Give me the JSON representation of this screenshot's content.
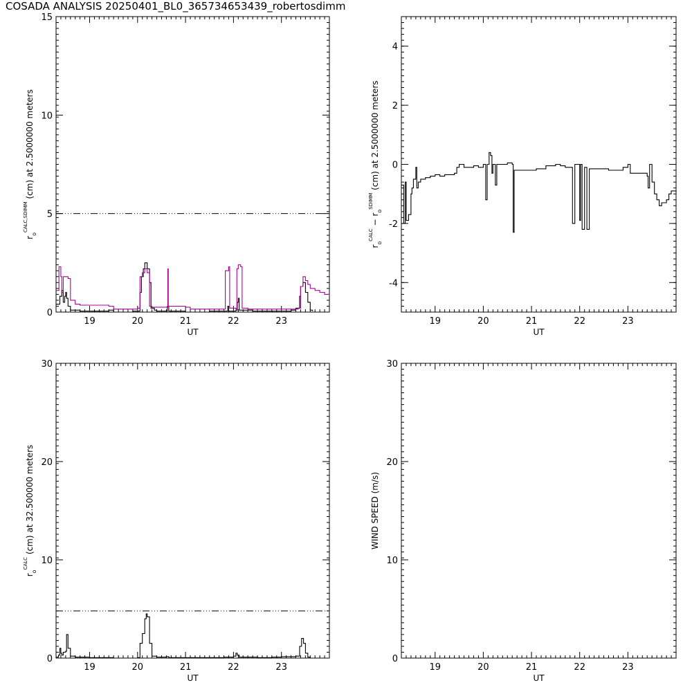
{
  "title": "COSADA ANALYSIS 20250401_BL0_365734653439_robertosdimm",
  "chart_data": [
    {
      "id": "p1",
      "type": "line",
      "xlabel": "UT",
      "xlim": [
        18.3,
        24.0
      ],
      "ylim": [
        0,
        15
      ],
      "xticks": [
        19,
        20,
        21,
        22,
        23
      ],
      "yticks": [
        0,
        5,
        10,
        15
      ],
      "ylabel_main": "r",
      "ylabel_sub": "o",
      "ylabel_sup": "CALC,SDIMM",
      "ylabel_rest": " (cm)  at  2.5000000 meters",
      "hline": 5,
      "series": [
        {
          "color": "#000000",
          "points": [
            [
              18.3,
              0.4
            ],
            [
              18.35,
              0.4
            ],
            [
              18.38,
              0.8
            ],
            [
              18.42,
              1.1
            ],
            [
              18.45,
              0.5
            ],
            [
              18.48,
              0.8
            ],
            [
              18.5,
              1.0
            ],
            [
              18.52,
              0.7
            ],
            [
              18.55,
              0.3
            ],
            [
              18.6,
              0.1
            ],
            [
              18.8,
              0.05
            ],
            [
              19.4,
              0.1
            ],
            [
              19.5,
              0.0
            ],
            [
              19.9,
              0.05
            ],
            [
              20.0,
              0.05
            ],
            [
              20.05,
              1.0
            ],
            [
              20.08,
              1.8
            ],
            [
              20.12,
              2.2
            ],
            [
              20.15,
              2.5
            ],
            [
              20.2,
              2.2
            ],
            [
              20.25,
              1.5
            ],
            [
              20.28,
              0.2
            ],
            [
              20.35,
              0.1
            ],
            [
              20.4,
              0.05
            ],
            [
              20.6,
              0.05
            ],
            [
              20.62,
              0.3
            ],
            [
              20.65,
              0.05
            ],
            [
              21.0,
              0.0
            ],
            [
              21.5,
              0.05
            ],
            [
              21.85,
              0.05
            ],
            [
              21.88,
              0.3
            ],
            [
              21.9,
              0.05
            ],
            [
              22.05,
              0.1
            ],
            [
              22.08,
              0.5
            ],
            [
              22.1,
              0.7
            ],
            [
              22.12,
              0.1
            ],
            [
              22.4,
              0.05
            ],
            [
              23.2,
              0.1
            ],
            [
              23.3,
              0.2
            ],
            [
              23.38,
              0.8
            ],
            [
              23.4,
              1.3
            ],
            [
              23.45,
              1.5
            ],
            [
              23.5,
              1.0
            ],
            [
              23.55,
              0.5
            ],
            [
              23.6,
              0.1
            ],
            [
              23.65,
              0.05
            ]
          ]
        },
        {
          "color": "#aa0099",
          "points": [
            [
              18.3,
              1.1
            ],
            [
              18.36,
              2.3
            ],
            [
              18.4,
              1.8
            ],
            [
              18.42,
              1.0
            ],
            [
              18.45,
              1.8
            ],
            [
              18.55,
              1.7
            ],
            [
              18.6,
              0.6
            ],
            [
              18.7,
              0.4
            ],
            [
              18.8,
              0.35
            ],
            [
              19.0,
              0.35
            ],
            [
              19.4,
              0.3
            ],
            [
              19.5,
              0.15
            ],
            [
              19.8,
              0.15
            ],
            [
              19.9,
              0.15
            ],
            [
              20.0,
              0.2
            ],
            [
              20.05,
              1.8
            ],
            [
              20.1,
              2.0
            ],
            [
              20.15,
              2.2
            ],
            [
              20.2,
              2.0
            ],
            [
              20.25,
              0.3
            ],
            [
              20.3,
              0.25
            ],
            [
              20.62,
              0.25
            ],
            [
              20.63,
              2.2
            ],
            [
              20.64,
              0.3
            ],
            [
              21.0,
              0.25
            ],
            [
              21.1,
              0.15
            ],
            [
              21.8,
              0.15
            ],
            [
              21.83,
              2.1
            ],
            [
              21.9,
              2.3
            ],
            [
              21.92,
              0.2
            ],
            [
              22.05,
              0.15
            ],
            [
              22.07,
              2.2
            ],
            [
              22.1,
              2.4
            ],
            [
              22.15,
              2.3
            ],
            [
              22.18,
              0.2
            ],
            [
              22.3,
              0.15
            ],
            [
              23.35,
              0.2
            ],
            [
              23.4,
              1.3
            ],
            [
              23.45,
              1.8
            ],
            [
              23.5,
              1.6
            ],
            [
              23.55,
              1.4
            ],
            [
              23.6,
              1.2
            ],
            [
              23.7,
              1.1
            ],
            [
              23.8,
              1.0
            ],
            [
              23.9,
              0.9
            ],
            [
              24.0,
              0.85
            ]
          ]
        }
      ]
    },
    {
      "id": "p2",
      "type": "line",
      "xlabel": "UT",
      "xlim": [
        18.3,
        24.0
      ],
      "ylim": [
        -5,
        5
      ],
      "xticks": [
        19,
        20,
        21,
        22,
        23
      ],
      "yticks": [
        -4,
        -2,
        0,
        2,
        4
      ],
      "ylabel_main": "r",
      "ylabel_sub": "o",
      "ylabel_sup": "CALC",
      "ylabel_mid": " − r",
      "ylabel_sub2": "o",
      "ylabel_sup2": "SDIMM",
      "ylabel_rest": " (cm)  at  2.5000000 meters",
      "series": [
        {
          "color": "#000000",
          "points": [
            [
              18.3,
              -0.7
            ],
            [
              18.35,
              -2.0
            ],
            [
              18.38,
              -0.6
            ],
            [
              18.4,
              -1.9
            ],
            [
              18.45,
              -1.7
            ],
            [
              18.5,
              -1.0
            ],
            [
              18.52,
              -0.8
            ],
            [
              18.55,
              -0.5
            ],
            [
              18.6,
              -0.1
            ],
            [
              18.62,
              -0.8
            ],
            [
              18.65,
              -0.6
            ],
            [
              18.7,
              -0.5
            ],
            [
              18.8,
              -0.45
            ],
            [
              18.9,
              -0.4
            ],
            [
              19.0,
              -0.35
            ],
            [
              19.1,
              -0.4
            ],
            [
              19.2,
              -0.35
            ],
            [
              19.4,
              -0.3
            ],
            [
              19.45,
              -0.1
            ],
            [
              19.5,
              0.0
            ],
            [
              19.6,
              -0.1
            ],
            [
              19.8,
              -0.05
            ],
            [
              19.9,
              -0.1
            ],
            [
              20.0,
              0.0
            ],
            [
              20.05,
              -1.2
            ],
            [
              20.08,
              0.0
            ],
            [
              20.12,
              0.4
            ],
            [
              20.15,
              0.3
            ],
            [
              20.18,
              -0.3
            ],
            [
              20.2,
              0.0
            ],
            [
              20.25,
              -0.7
            ],
            [
              20.28,
              0.0
            ],
            [
              20.5,
              0.05
            ],
            [
              20.6,
              0.0
            ],
            [
              20.62,
              -2.3
            ],
            [
              20.64,
              -0.2
            ],
            [
              21.0,
              -0.2
            ],
            [
              21.1,
              -0.15
            ],
            [
              21.3,
              -0.05
            ],
            [
              21.5,
              0.0
            ],
            [
              21.6,
              -0.05
            ],
            [
              21.7,
              -0.1
            ],
            [
              21.8,
              -0.1
            ],
            [
              21.85,
              -2.0
            ],
            [
              21.9,
              0.0
            ],
            [
              22.0,
              -1.9
            ],
            [
              22.02,
              0.0
            ],
            [
              22.05,
              -2.2
            ],
            [
              22.1,
              -0.1
            ],
            [
              22.15,
              -2.2
            ],
            [
              22.2,
              -0.15
            ],
            [
              22.4,
              -0.15
            ],
            [
              22.6,
              -0.2
            ],
            [
              22.9,
              -0.1
            ],
            [
              23.0,
              0.0
            ],
            [
              23.05,
              -0.3
            ],
            [
              23.4,
              -0.4
            ],
            [
              23.42,
              -0.8
            ],
            [
              23.45,
              0.0
            ],
            [
              23.5,
              -0.6
            ],
            [
              23.55,
              -1.0
            ],
            [
              23.6,
              -1.2
            ],
            [
              23.65,
              -1.4
            ],
            [
              23.7,
              -1.3
            ],
            [
              23.8,
              -1.2
            ],
            [
              23.85,
              -1.0
            ],
            [
              23.9,
              -0.9
            ],
            [
              24.0,
              -0.95
            ]
          ]
        }
      ]
    },
    {
      "id": "p3",
      "type": "line",
      "xlabel": "UT",
      "xlim": [
        18.3,
        24.0
      ],
      "ylim": [
        0,
        30
      ],
      "xticks": [
        19,
        20,
        21,
        22,
        23
      ],
      "yticks": [
        0,
        10,
        20,
        30
      ],
      "ylabel_main": "r",
      "ylabel_sub": "o",
      "ylabel_sup": "CALC",
      "ylabel_rest": " (cm)  at 32.500000 meters",
      "hline": 4.8,
      "series": [
        {
          "color": "#000000",
          "points": [
            [
              18.3,
              0.1
            ],
            [
              18.35,
              0.3
            ],
            [
              18.38,
              1.0
            ],
            [
              18.4,
              0.5
            ],
            [
              18.42,
              0.3
            ],
            [
              18.45,
              0.6
            ],
            [
              18.5,
              0.7
            ],
            [
              18.52,
              2.4
            ],
            [
              18.55,
              1.0
            ],
            [
              18.6,
              0.2
            ],
            [
              18.7,
              0.1
            ],
            [
              19.0,
              0.05
            ],
            [
              19.5,
              0.0
            ],
            [
              20.0,
              0.05
            ],
            [
              20.05,
              1.5
            ],
            [
              20.1,
              2.5
            ],
            [
              20.15,
              4.0
            ],
            [
              20.18,
              4.5
            ],
            [
              20.2,
              4.2
            ],
            [
              20.25,
              1.5
            ],
            [
              20.3,
              0.2
            ],
            [
              20.4,
              0.1
            ],
            [
              20.6,
              0.15
            ],
            [
              20.65,
              0.05
            ],
            [
              21.0,
              0.05
            ],
            [
              21.6,
              0.05
            ],
            [
              21.8,
              0.1
            ],
            [
              22.0,
              0.2
            ],
            [
              22.05,
              0.5
            ],
            [
              22.08,
              0.3
            ],
            [
              22.12,
              0.1
            ],
            [
              22.5,
              0.05
            ],
            [
              22.8,
              0.1
            ],
            [
              23.0,
              0.15
            ],
            [
              23.3,
              0.2
            ],
            [
              23.38,
              1.2
            ],
            [
              23.42,
              2.0
            ],
            [
              23.46,
              1.5
            ],
            [
              23.5,
              0.5
            ],
            [
              23.55,
              0.1
            ],
            [
              23.6,
              0.05
            ]
          ]
        }
      ]
    },
    {
      "id": "p4",
      "type": "line",
      "xlabel": "UT",
      "xlim": [
        18.3,
        24.0
      ],
      "ylim": [
        0,
        30
      ],
      "xticks": [
        19,
        20,
        21,
        22,
        23
      ],
      "yticks": [
        0,
        10,
        20,
        30
      ],
      "ylabel_main": "WIND SPEED (m/s)",
      "series": []
    }
  ]
}
